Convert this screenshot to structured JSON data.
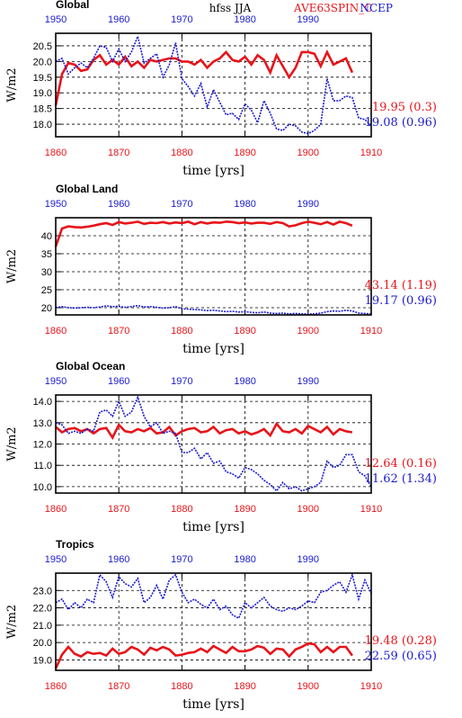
{
  "header": {
    "title": "hfss JJA",
    "model_name": "AVE63SPIN_C",
    "obs_name": "NCEP",
    "model_color": "#e8141a",
    "obs_color": "#1a1ad0"
  },
  "chart_data": [
    {
      "type": "line",
      "title": "Global",
      "xlabel": "time [yrs]",
      "ylabel": "W/m2",
      "xlim": [
        1860,
        1910
      ],
      "xticks": [
        1860,
        1870,
        1880,
        1890,
        1900,
        1910
      ],
      "top_xlim": [
        1950,
        2000
      ],
      "top_xticks": [
        1950,
        1960,
        1970,
        1980,
        1990
      ],
      "ylim": [
        17.6,
        20.9
      ],
      "yticks": [
        18.0,
        18.5,
        19.0,
        19.5,
        20.0,
        20.5
      ],
      "ytick_labels": [
        "18.0",
        "18.5",
        "19.0",
        "19.5",
        "20.0",
        "20.5"
      ],
      "grid": true,
      "series": [
        {
          "name": "AVE63SPIN_C",
          "color": "#e8141a",
          "x_start": 1860,
          "values": [
            18.6,
            19.6,
            19.95,
            19.9,
            19.7,
            19.75,
            20.05,
            20.2,
            19.9,
            20.05,
            19.9,
            20.15,
            19.85,
            20.0,
            19.8,
            20.05,
            20.0,
            20.05,
            20.1,
            20.1,
            20.0,
            20.0,
            19.9,
            20.05,
            19.8,
            20.0,
            20.1,
            20.3,
            20.05,
            20.0,
            20.15,
            19.9,
            20.2,
            20.05,
            19.65,
            20.2,
            19.85,
            19.5,
            19.8,
            20.3,
            20.3,
            20.25,
            19.85,
            20.3,
            19.9,
            20.0,
            20.1,
            19.65
          ],
          "mean_label": "19.95 (0.3)"
        },
        {
          "name": "NCEP",
          "color": "#1a1ad0",
          "x_start": 1860,
          "values": [
            20.0,
            20.1,
            19.6,
            19.8,
            19.95,
            19.8,
            20.1,
            20.5,
            20.45,
            20.0,
            20.4,
            20.0,
            20.3,
            20.8,
            19.95,
            20.1,
            20.25,
            19.5,
            19.9,
            20.6,
            19.45,
            19.2,
            18.9,
            19.3,
            18.55,
            19.1,
            18.7,
            18.3,
            18.35,
            18.15,
            18.65,
            18.45,
            18.05,
            18.75,
            18.35,
            17.85,
            17.8,
            18.0,
            17.95,
            17.75,
            17.7,
            17.8,
            18.0,
            19.45,
            18.75,
            18.75,
            18.9,
            18.85,
            18.2,
            18.15,
            17.95
          ],
          "mean_label": "19.08 (0.96)"
        }
      ]
    },
    {
      "type": "line",
      "title": "Global Land",
      "xlabel": "time [yrs]",
      "ylabel": "W/m2",
      "xlim": [
        1860,
        1910
      ],
      "xticks": [
        1860,
        1870,
        1880,
        1890,
        1900,
        1910
      ],
      "top_xlim": [
        1950,
        2000
      ],
      "top_xticks": [
        1950,
        1960,
        1970,
        1980,
        1990
      ],
      "ylim": [
        18,
        45
      ],
      "yticks": [
        20,
        25,
        30,
        35,
        40
      ],
      "ytick_labels": [
        "20",
        "25",
        "30",
        "35",
        "40"
      ],
      "grid": true,
      "series": [
        {
          "name": "AVE63SPIN_C",
          "color": "#e8141a",
          "x_start": 1860,
          "values": [
            37.0,
            42.0,
            42.6,
            42.4,
            42.3,
            42.5,
            42.8,
            43.2,
            43.5,
            43.0,
            43.8,
            43.4,
            43.6,
            43.9,
            43.3,
            43.6,
            43.5,
            43.8,
            43.4,
            43.7,
            43.5,
            43.9,
            43.2,
            43.8,
            43.4,
            43.7,
            43.6,
            43.9,
            43.8,
            43.5,
            43.7,
            43.4,
            43.6,
            43.6,
            43.3,
            43.8,
            43.5,
            42.6,
            42.9,
            43.5,
            43.9,
            43.6,
            43.2,
            43.8,
            43.1,
            43.9,
            43.5,
            42.8
          ],
          "mean_label": "43.14 (1.19)"
        },
        {
          "name": "NCEP",
          "color": "#1a1ad0",
          "x_start": 1860,
          "values": [
            20.0,
            20.3,
            20.0,
            19.9,
            20.0,
            20.1,
            20.0,
            20.2,
            20.5,
            20.3,
            20.4,
            20.1,
            20.3,
            20.6,
            20.2,
            20.3,
            20.1,
            19.9,
            20.0,
            20.3,
            19.7,
            19.6,
            19.5,
            19.4,
            19.2,
            19.3,
            19.1,
            18.9,
            19.0,
            18.8,
            18.9,
            18.7,
            18.6,
            18.8,
            18.5,
            18.4,
            18.5,
            18.3,
            18.4,
            18.3,
            18.2,
            18.3,
            18.5,
            18.9,
            19.1,
            19.0,
            19.3,
            19.1,
            18.5,
            18.4,
            18.3
          ],
          "mean_label": "19.17 (0.96)"
        }
      ]
    },
    {
      "type": "line",
      "title": "Global Ocean",
      "xlabel": "time [yrs]",
      "ylabel": "W/m2",
      "xlim": [
        1860,
        1910
      ],
      "xticks": [
        1860,
        1870,
        1880,
        1890,
        1900,
        1910
      ],
      "top_xlim": [
        1950,
        2000
      ],
      "top_xticks": [
        1950,
        1960,
        1970,
        1980,
        1990
      ],
      "ylim": [
        9.7,
        14.3
      ],
      "yticks": [
        10.0,
        11.0,
        12.0,
        13.0,
        14.0
      ],
      "ytick_labels": [
        "10.0",
        "11.0",
        "12.0",
        "13.0",
        "14.0"
      ],
      "grid": true,
      "series": [
        {
          "name": "AVE63SPIN_C",
          "color": "#e8141a",
          "x_start": 1860,
          "values": [
            12.8,
            12.55,
            12.7,
            12.75,
            12.6,
            12.7,
            12.5,
            12.7,
            12.75,
            12.3,
            12.9,
            12.6,
            12.55,
            12.7,
            12.6,
            12.75,
            12.5,
            12.55,
            12.8,
            12.4,
            12.6,
            12.7,
            12.75,
            12.55,
            12.6,
            12.8,
            12.5,
            12.65,
            12.7,
            12.5,
            12.6,
            12.45,
            12.55,
            12.7,
            12.4,
            12.95,
            12.6,
            12.55,
            12.7,
            12.5,
            12.85,
            12.7,
            12.55,
            12.8,
            12.45,
            12.7,
            12.6,
            12.55
          ],
          "mean_label": "12.64 (0.16)"
        },
        {
          "name": "NCEP",
          "color": "#1a1ad0",
          "x_start": 1860,
          "values": [
            13.0,
            12.9,
            12.5,
            12.6,
            12.5,
            12.7,
            12.6,
            13.5,
            13.6,
            13.3,
            14.0,
            13.3,
            13.5,
            14.2,
            13.3,
            12.8,
            13.0,
            12.5,
            12.6,
            12.5,
            11.6,
            11.6,
            11.8,
            11.3,
            11.6,
            11.1,
            11.2,
            10.7,
            10.6,
            10.4,
            10.9,
            10.8,
            10.6,
            10.3,
            10.1,
            9.8,
            10.2,
            9.9,
            10.0,
            9.8,
            9.9,
            10.0,
            10.2,
            11.2,
            10.9,
            11.0,
            11.5,
            11.5,
            10.7,
            10.5,
            10.0
          ],
          "mean_label": "11.62 (1.34)"
        }
      ]
    },
    {
      "type": "line",
      "title": "Tropics",
      "xlabel": "time [yrs]",
      "ylabel": "W/m2",
      "xlim": [
        1860,
        1910
      ],
      "xticks": [
        1860,
        1870,
        1880,
        1890,
        1900,
        1910
      ],
      "top_xlim": [
        1950,
        2000
      ],
      "top_xticks": [
        1950,
        1960,
        1970,
        1980,
        1990
      ],
      "ylim": [
        18.4,
        24.0
      ],
      "yticks": [
        19.0,
        20.0,
        21.0,
        22.0,
        23.0
      ],
      "ytick_labels": [
        "19.0",
        "20.0",
        "21.0",
        "22.0",
        "23.0"
      ],
      "grid": true,
      "series": [
        {
          "name": "AVE63SPIN_C",
          "color": "#e8141a",
          "x_start": 1860,
          "values": [
            18.5,
            19.3,
            19.75,
            19.35,
            19.2,
            19.45,
            19.35,
            19.4,
            19.25,
            19.65,
            19.35,
            19.45,
            19.75,
            19.6,
            19.3,
            19.7,
            19.55,
            19.75,
            19.6,
            19.25,
            19.3,
            19.4,
            19.45,
            19.65,
            19.45,
            19.8,
            19.6,
            19.4,
            19.75,
            19.5,
            19.5,
            19.6,
            19.8,
            19.7,
            19.35,
            19.65,
            19.6,
            19.2,
            19.6,
            19.75,
            19.95,
            19.9,
            19.45,
            19.75,
            19.45,
            19.75,
            19.75,
            19.25
          ],
          "mean_label": "19.48 (0.28)"
        },
        {
          "name": "NCEP",
          "color": "#1a1ad0",
          "x_start": 1860,
          "values": [
            22.3,
            22.5,
            21.9,
            22.3,
            22.0,
            22.5,
            22.3,
            23.9,
            23.5,
            22.6,
            23.8,
            23.4,
            23.2,
            23.7,
            22.3,
            22.6,
            23.3,
            22.5,
            23.6,
            23.9,
            22.9,
            22.3,
            22.5,
            22.2,
            22.0,
            22.5,
            21.9,
            22.1,
            21.6,
            21.4,
            22.3,
            22.0,
            22.3,
            22.6,
            22.1,
            21.9,
            21.8,
            22.0,
            21.9,
            22.1,
            22.4,
            22.3,
            22.9,
            23.0,
            23.3,
            23.5,
            22.9,
            23.9,
            22.5,
            23.6,
            22.8
          ],
          "mean_label": "22.59 (0.65)"
        }
      ]
    }
  ]
}
